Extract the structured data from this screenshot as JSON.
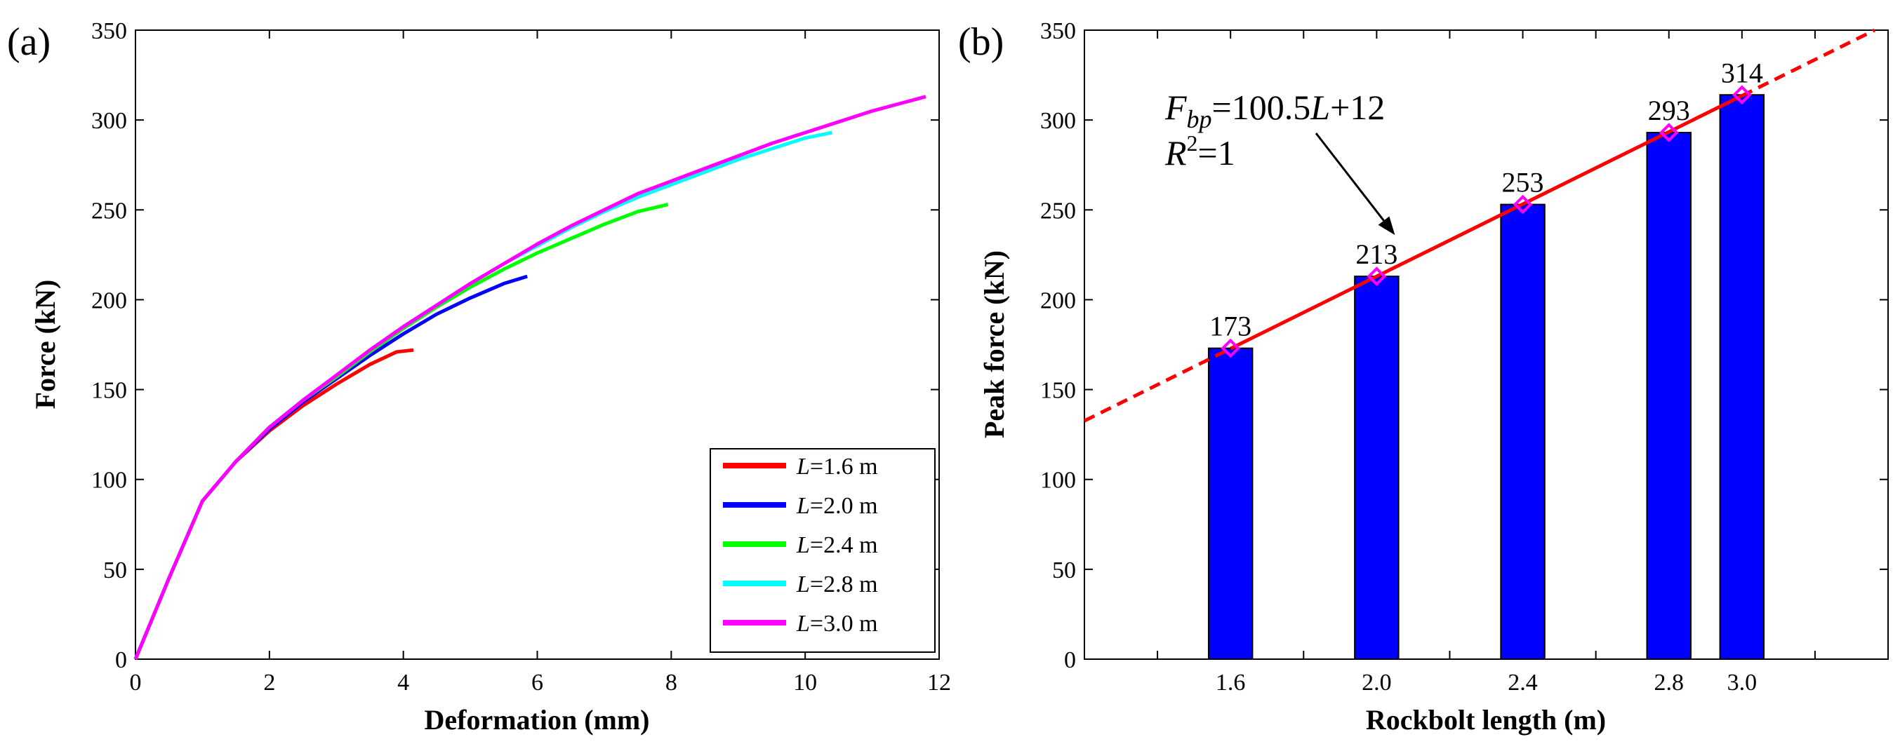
{
  "chart_data": [
    {
      "type": "line",
      "panel_label": "(a)",
      "xlabel": "Deformation (mm)",
      "ylabel": "Force (kN)",
      "xlim": [
        0,
        12
      ],
      "ylim": [
        0,
        350
      ],
      "xticks": [
        0,
        2,
        4,
        6,
        8,
        10,
        12
      ],
      "yticks": [
        0,
        50,
        100,
        150,
        200,
        250,
        300,
        350
      ],
      "grid": false,
      "legend_position": "bottom-right",
      "legend_prefix": "L",
      "series": [
        {
          "name": "=1.6 m",
          "color": "#ff0000",
          "x": [
            0,
            0.5,
            1.0,
            1.5,
            2.0,
            2.5,
            3.0,
            3.5,
            3.9,
            4.15
          ],
          "y": [
            0,
            45,
            88,
            110,
            127,
            141,
            153,
            164,
            171,
            172
          ]
        },
        {
          "name": "=2.0 m",
          "color": "#0000ff",
          "x": [
            0,
            0.5,
            1.0,
            1.5,
            2.0,
            2.5,
            3.0,
            3.5,
            4.0,
            4.5,
            5.0,
            5.5,
            5.85
          ],
          "y": [
            0,
            45,
            88,
            110,
            128,
            143,
            156,
            169,
            181,
            192,
            201,
            209,
            213
          ]
        },
        {
          "name": "=2.4 m",
          "color": "#00ff00",
          "x": [
            0,
            0.5,
            1.0,
            1.5,
            2.0,
            2.5,
            3.0,
            3.5,
            4.0,
            4.5,
            5.0,
            5.5,
            6.0,
            6.5,
            7.0,
            7.5,
            7.95
          ],
          "y": [
            0,
            45,
            88,
            110,
            129,
            144,
            157,
            171,
            184,
            196,
            207,
            217,
            226,
            234,
            242,
            249,
            253
          ]
        },
        {
          "name": "=2.8 m",
          "color": "#00ffff",
          "x": [
            0,
            0.5,
            1.0,
            1.5,
            2.0,
            2.5,
            3.0,
            3.5,
            4.0,
            4.5,
            5.0,
            5.5,
            6.0,
            6.5,
            7.0,
            7.5,
            8.0,
            8.5,
            9.0,
            9.5,
            10.0,
            10.4
          ],
          "y": [
            0,
            45,
            88,
            110,
            129,
            144,
            158,
            172,
            185,
            197,
            209,
            220,
            230,
            240,
            249,
            257,
            264,
            271,
            278,
            284,
            290,
            293
          ]
        },
        {
          "name": "=3.0 m",
          "color": "#ff00ff",
          "x": [
            0,
            0.5,
            1.0,
            1.5,
            2.0,
            2.5,
            3.0,
            3.5,
            4.0,
            4.5,
            5.0,
            5.5,
            6.0,
            6.5,
            7.0,
            7.5,
            8.0,
            8.5,
            9.0,
            9.5,
            10.0,
            10.5,
            11.0,
            11.5,
            11.8
          ],
          "y": [
            0,
            45,
            88,
            110,
            129,
            144,
            158,
            172,
            185,
            197,
            209,
            220,
            231,
            241,
            250,
            259,
            266,
            273,
            280,
            287,
            293,
            299,
            305,
            310,
            313
          ]
        }
      ]
    },
    {
      "type": "bar",
      "panel_label": "(b)",
      "xlabel": "Rockbolt length (m)",
      "ylabel": "Peak force (kN)",
      "xlim": [
        1.2,
        3.4
      ],
      "ylim": [
        0,
        350
      ],
      "xticks": [
        1.6,
        2.0,
        2.4,
        2.8,
        3.0
      ],
      "xtick_labels": [
        "1.6",
        "2.0",
        "2.4",
        "2.8",
        "3.0"
      ],
      "minor_xticks": [
        1.4,
        1.8,
        2.2,
        2.6,
        3.2
      ],
      "yticks": [
        0,
        50,
        100,
        150,
        200,
        250,
        300,
        350
      ],
      "grid": false,
      "bar_color": "#0000ff",
      "marker_color": "#ff00ff",
      "fit_color": "#ff0000",
      "bar_width": 0.12,
      "x": [
        1.6,
        2.0,
        2.4,
        2.8,
        3.0
      ],
      "values": [
        173,
        213,
        253,
        293,
        314
      ],
      "data_labels": [
        "173",
        "213",
        "253",
        "293",
        "314"
      ],
      "fit": {
        "slope": 100.5,
        "intercept": 12,
        "solid_range": [
          1.6,
          3.0
        ],
        "dashed_range": [
          1.2,
          3.4
        ]
      },
      "annotation": {
        "var": "F",
        "sub": "bp",
        "rhs": "=100.5",
        "var2": "L",
        "tail": "+12",
        "r_var": "R",
        "r_sup": "2",
        "r_rhs": "=1",
        "arrow_to": [
          2.05,
          236
        ]
      }
    }
  ]
}
